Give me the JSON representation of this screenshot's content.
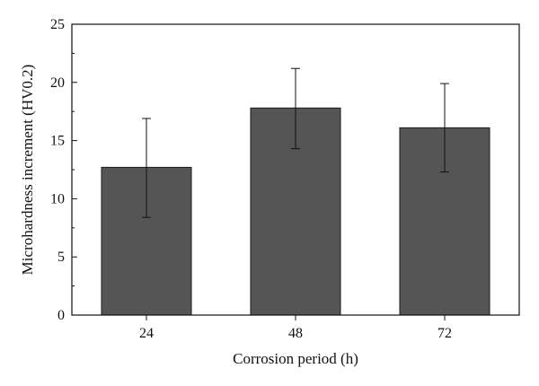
{
  "chart_data": {
    "type": "bar",
    "categories": [
      "24",
      "48",
      "72"
    ],
    "values": [
      12.7,
      17.8,
      16.1
    ],
    "error": [
      {
        "low": 8.4,
        "high": 16.9
      },
      {
        "low": 14.3,
        "high": 21.2
      },
      {
        "low": 12.3,
        "high": 19.9
      }
    ],
    "xlabel": "Corrosion period (h)",
    "ylabel": "Microhardness increment (HV0.2)",
    "ylim": [
      0,
      25
    ],
    "yticks": [
      0,
      5,
      10,
      15,
      20,
      25
    ],
    "grid": false,
    "legend": "none",
    "colors": {
      "bar": "#555555",
      "bar_edge": "#1a1a1a",
      "axis": "#111111"
    }
  }
}
